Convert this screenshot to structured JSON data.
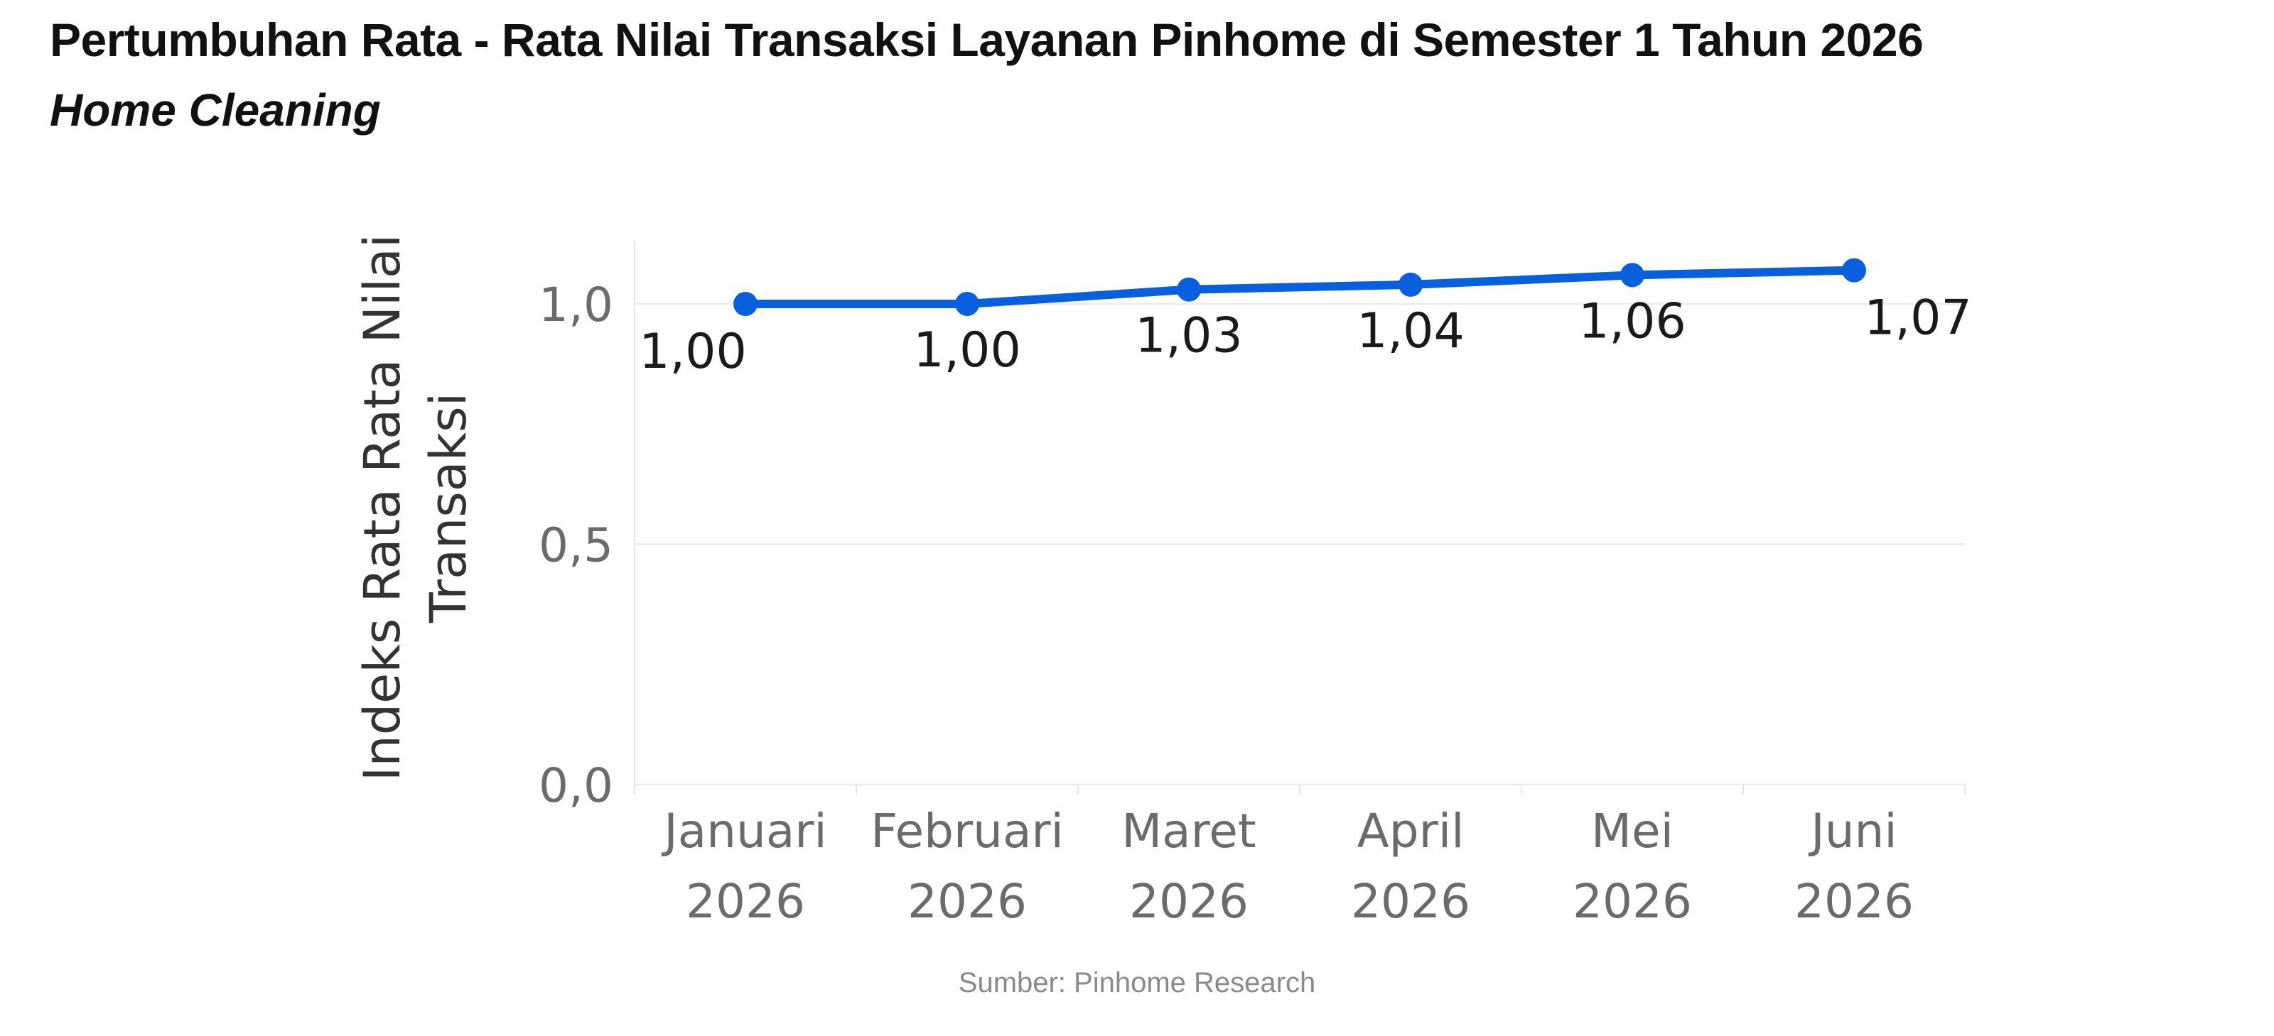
{
  "header": {
    "title": "Pertumbuhan Rata - Rata Nilai Transaksi Layanan Pinhome di Semester 1 Tahun 2026",
    "subtitle": "Home Cleaning"
  },
  "footer": {
    "source": "Sumber: Pinhome Research"
  },
  "colors": {
    "line": "#0a5fdc",
    "gridline": "#ececec",
    "tick_text": "#6b6b6b",
    "label_text": "#1a1a1a"
  },
  "chart_data": {
    "type": "line",
    "categories": [
      [
        "Januari",
        "2026"
      ],
      [
        "Februari",
        "2026"
      ],
      [
        "Maret",
        "2026"
      ],
      [
        "April",
        "2026"
      ],
      [
        "Mei",
        "2026"
      ],
      [
        "Juni",
        "2026"
      ]
    ],
    "series": [
      {
        "values": [
          1.0,
          1.0,
          1.03,
          1.04,
          1.06,
          1.07
        ]
      }
    ],
    "data_labels": [
      "1,00",
      "1,00",
      "1,03",
      "1,04",
      "1,06",
      "1,07"
    ],
    "ylabel": [
      "Indeks Rata Rata Nilai",
      "Transaksi"
    ],
    "xlabel": "",
    "ylim": [
      0,
      1.13
    ],
    "yticks": [
      {
        "value": 0.0,
        "label": "0,0"
      },
      {
        "value": 0.5,
        "label": "0,5"
      },
      {
        "value": 1.0,
        "label": "1,0"
      }
    ],
    "grid": true,
    "legend": "none"
  }
}
